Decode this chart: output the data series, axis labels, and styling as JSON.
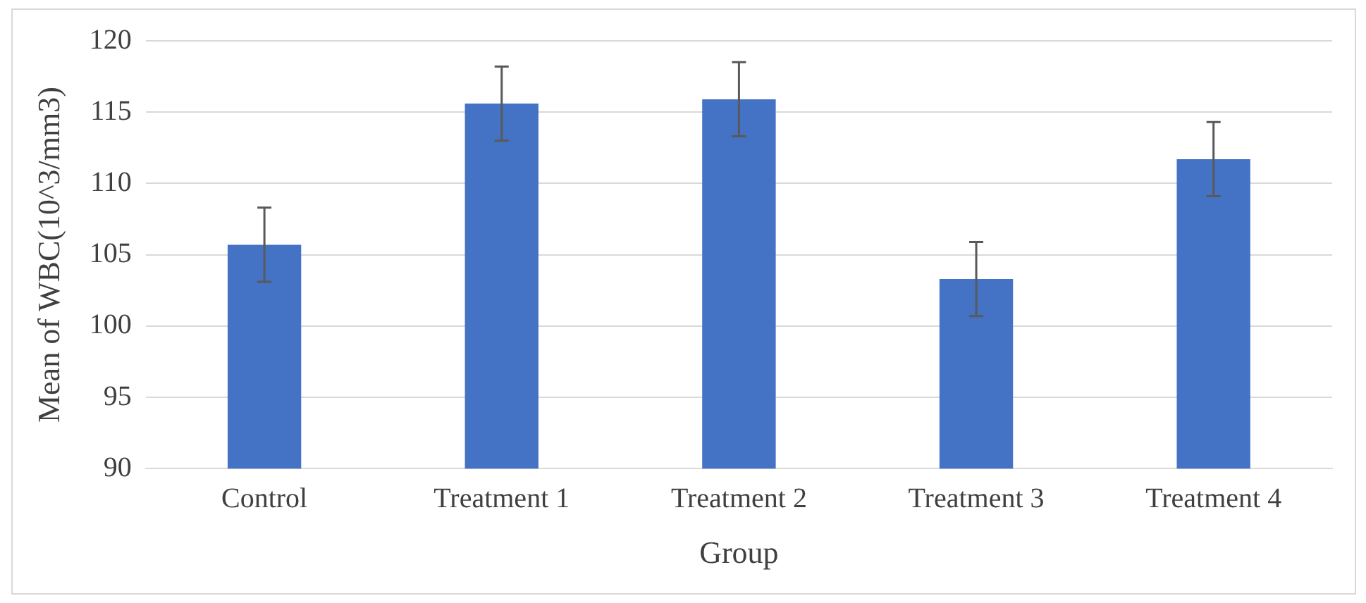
{
  "chart_data": {
    "type": "bar",
    "xlabel": "Group",
    "ylabel": "Mean of WBC(10^3/mm3)",
    "categories": [
      "Control",
      "Treatment 1",
      "Treatment 2",
      "Treatment 3",
      "Treatment 4"
    ],
    "values": [
      105.7,
      115.6,
      115.9,
      103.3,
      111.7
    ],
    "errors": [
      2.6,
      2.6,
      2.6,
      2.6,
      2.6
    ],
    "color": "#4472c4",
    "ylim": [
      90,
      120
    ],
    "yticks": [
      90,
      95,
      100,
      105,
      110,
      115,
      120
    ],
    "grid": "y",
    "legend": false
  }
}
